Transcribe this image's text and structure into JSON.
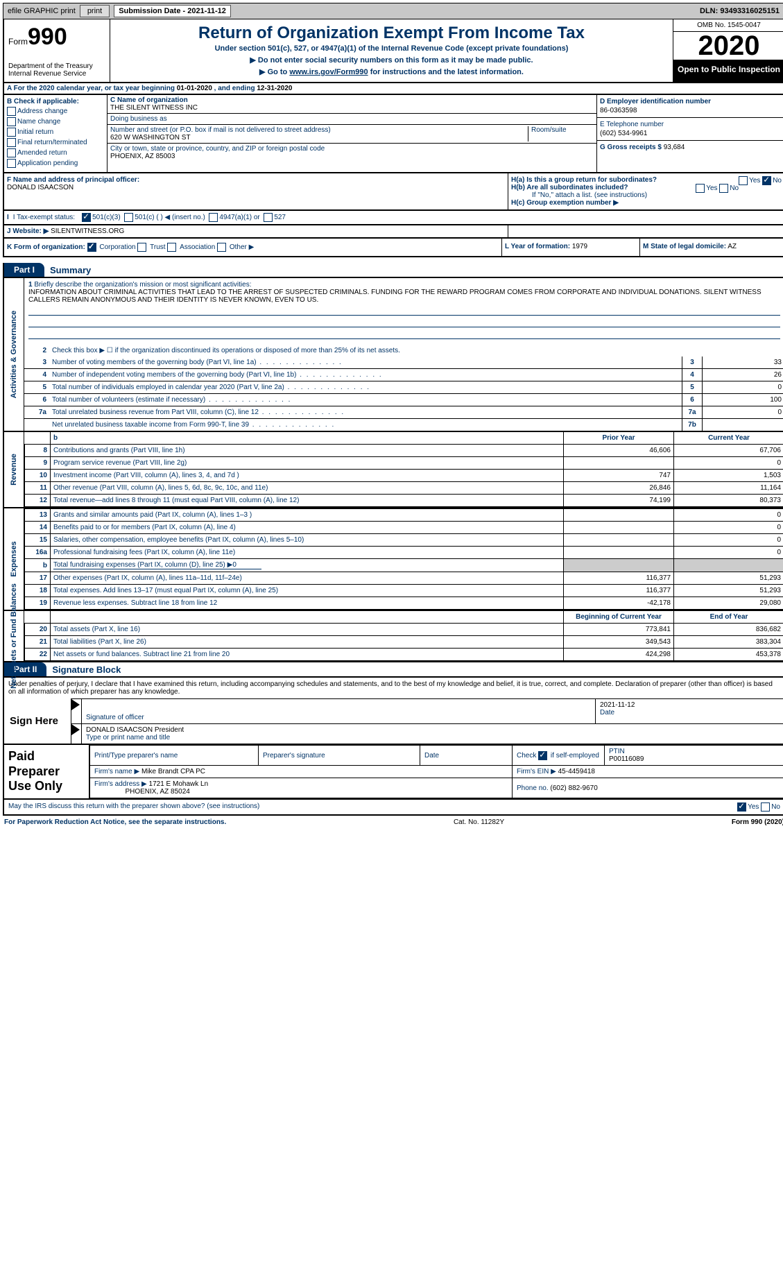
{
  "topbar": {
    "efile": "efile GRAPHIC print",
    "submission": "Submission Date - 2021-11-12",
    "dln": "DLN: 93493316025151"
  },
  "header": {
    "form_label": "Form",
    "form_no": "990",
    "title": "Return of Organization Exempt From Income Tax",
    "sub1": "Under section 501(c), 527, or 4947(a)(1) of the Internal Revenue Code (except private foundations)",
    "sub2": "Do not enter social security numbers on this form as it may be made public.",
    "sub3_a": "Go to ",
    "sub3_link": "www.irs.gov/Form990",
    "sub3_b": " for instructions and the latest information.",
    "dept": "Department of the Treasury\nInternal Revenue Service",
    "omb": "OMB No. 1545-0047",
    "year": "2020",
    "open": "Open to Public Inspection"
  },
  "sectionA": {
    "text_a": "For the 2020 calendar year, or tax year beginning ",
    "begin": "01-01-2020",
    "text_b": " , and ending ",
    "end": "12-31-2020"
  },
  "colB": {
    "label": "B Check if applicable:",
    "items": [
      "Address change",
      "Name change",
      "Initial return",
      "Final return/terminated",
      "Amended return",
      "Application pending"
    ]
  },
  "colC": {
    "name_label": "C Name of organization",
    "name": "THE SILENT WITNESS INC",
    "dba_label": "Doing business as",
    "dba": "",
    "addr_label": "Number and street (or P.O. box if mail is not delivered to street address)",
    "room_label": "Room/suite",
    "addr": "620 W WASHINGTON ST",
    "city_label": "City or town, state or province, country, and ZIP or foreign postal code",
    "city": "PHOENIX, AZ  85003"
  },
  "colDE": {
    "d_label": "D Employer identification number",
    "d_val": "86-0363598",
    "e_label": "E Telephone number",
    "e_val": "(602) 534-9961",
    "g_label": "G Gross receipts $",
    "g_val": "93,684"
  },
  "rowF": {
    "label": "F Name and address of principal officer:",
    "val": "DONALD ISAACSON"
  },
  "rowH": {
    "a": "H(a) Is this a group return for subordinates?",
    "b": "H(b) Are all subordinates included?",
    "note": "If \"No,\" attach a list. (see instructions)",
    "c": "H(c) Group exemption number ▶"
  },
  "rowI": {
    "label": "I Tax-exempt status:",
    "o1": "501(c)(3)",
    "o2": "501(c) (  ) ◀ (insert no.)",
    "o3": "4947(a)(1) or",
    "o4": "527"
  },
  "rowJ": {
    "label": "J Website: ▶",
    "val": "SILENTWITNESS.ORG"
  },
  "rowK": {
    "label": "K Form of organization:",
    "o1": "Corporation",
    "o2": "Trust",
    "o3": "Association",
    "o4": "Other ▶",
    "l_label": "L Year of formation:",
    "l_val": "1979",
    "m_label": "M State of legal domicile:",
    "m_val": "AZ"
  },
  "part1": {
    "tag": "Part I",
    "title": "Summary"
  },
  "mission": {
    "label": "Briefly describe the organization's mission or most significant activities:",
    "text": "INFORMATION ABOUT CRIMINAL ACTIVITIES THAT LEAD TO THE ARREST OF SUSPECTED CRIMINALS. FUNDING FOR THE REWARD PROGRAM COMES FROM CORPORATE AND INDIVIDUAL DONATIONS. SILENT WITNESS CALLERS REMAIN ANONYMOUS AND THEIR IDENTITY IS NEVER KNOWN, EVEN TO US."
  },
  "gov": {
    "side": "Activities & Governance",
    "l2": "Check this box ▶ ☐ if the organization discontinued its operations or disposed of more than 25% of its net assets.",
    "rows": [
      {
        "n": "3",
        "t": "Number of voting members of the governing body (Part VI, line 1a)",
        "b": "3",
        "v": "33"
      },
      {
        "n": "4",
        "t": "Number of independent voting members of the governing body (Part VI, line 1b)",
        "b": "4",
        "v": "26"
      },
      {
        "n": "5",
        "t": "Total number of individuals employed in calendar year 2020 (Part V, line 2a)",
        "b": "5",
        "v": "0"
      },
      {
        "n": "6",
        "t": "Total number of volunteers (estimate if necessary)",
        "b": "6",
        "v": "100"
      },
      {
        "n": "7a",
        "t": "Total unrelated business revenue from Part VIII, column (C), line 12",
        "b": "7a",
        "v": "0"
      },
      {
        "n": "",
        "t": "Net unrelated business taxable income from Form 990-T, line 39",
        "b": "7b",
        "v": ""
      }
    ]
  },
  "fin_hdr": {
    "prior": "Prior Year",
    "current": "Current Year"
  },
  "revenue": {
    "side": "Revenue",
    "rows": [
      {
        "n": "8",
        "t": "Contributions and grants (Part VIII, line 1h)",
        "p": "46,606",
        "c": "67,706"
      },
      {
        "n": "9",
        "t": "Program service revenue (Part VIII, line 2g)",
        "p": "",
        "c": "0"
      },
      {
        "n": "10",
        "t": "Investment income (Part VIII, column (A), lines 3, 4, and 7d )",
        "p": "747",
        "c": "1,503"
      },
      {
        "n": "11",
        "t": "Other revenue (Part VIII, column (A), lines 5, 6d, 8c, 9c, 10c, and 11e)",
        "p": "26,846",
        "c": "11,164"
      },
      {
        "n": "12",
        "t": "Total revenue—add lines 8 through 11 (must equal Part VIII, column (A), line 12)",
        "p": "74,199",
        "c": "80,373"
      }
    ]
  },
  "expenses": {
    "side": "Expenses",
    "rows": [
      {
        "n": "13",
        "t": "Grants and similar amounts paid (Part IX, column (A), lines 1–3 )",
        "p": "",
        "c": "0"
      },
      {
        "n": "14",
        "t": "Benefits paid to or for members (Part IX, column (A), line 4)",
        "p": "",
        "c": "0"
      },
      {
        "n": "15",
        "t": "Salaries, other compensation, employee benefits (Part IX, column (A), lines 5–10)",
        "p": "",
        "c": "0"
      },
      {
        "n": "16a",
        "t": "Professional fundraising fees (Part IX, column (A), line 11e)",
        "p": "",
        "c": "0"
      },
      {
        "n": "b",
        "t": "Total fundraising expenses (Part IX, column (D), line 25) ▶0",
        "p": "shaded",
        "c": "shaded"
      },
      {
        "n": "17",
        "t": "Other expenses (Part IX, column (A), lines 11a–11d, 11f–24e)",
        "p": "116,377",
        "c": "51,293"
      },
      {
        "n": "18",
        "t": "Total expenses. Add lines 13–17 (must equal Part IX, column (A), line 25)",
        "p": "116,377",
        "c": "51,293"
      },
      {
        "n": "19",
        "t": "Revenue less expenses. Subtract line 18 from line 12",
        "p": "-42,178",
        "c": "29,080"
      }
    ]
  },
  "net_hdr": {
    "begin": "Beginning of Current Year",
    "end": "End of Year"
  },
  "netassets": {
    "side": "Net Assets or Fund Balances",
    "rows": [
      {
        "n": "20",
        "t": "Total assets (Part X, line 16)",
        "p": "773,841",
        "c": "836,682"
      },
      {
        "n": "21",
        "t": "Total liabilities (Part X, line 26)",
        "p": "349,543",
        "c": "383,304"
      },
      {
        "n": "22",
        "t": "Net assets or fund balances. Subtract line 21 from line 20",
        "p": "424,298",
        "c": "453,378"
      }
    ]
  },
  "part2": {
    "tag": "Part II",
    "title": "Signature Block"
  },
  "sig": {
    "penalty": "Under penalties of perjury, I declare that I have examined this return, including accompanying schedules and statements, and to the best of my knowledge and belief, it is true, correct, and complete. Declaration of preparer (other than officer) is based on all information of which preparer has any knowledge.",
    "sign_here": "Sign Here",
    "sig_officer": "Signature of officer",
    "date": "2021-11-12",
    "date_lbl": "Date",
    "name": "DONALD ISAACSON  President",
    "name_lbl": "Type or print name and title"
  },
  "paid": {
    "label": "Paid Preparer Use Only",
    "h1": "Print/Type preparer's name",
    "h2": "Preparer's signature",
    "h3": "Date",
    "h4a": "Check",
    "h4b": "if self-employed",
    "h5": "PTIN",
    "ptin": "P00116089",
    "firm_name_lbl": "Firm's name ▶",
    "firm_name": "Mike Brandt CPA PC",
    "firm_ein_lbl": "Firm's EIN ▶",
    "firm_ein": "45-4459418",
    "firm_addr_lbl": "Firm's address ▶",
    "firm_addr": "1721 E Mohawk Ln",
    "firm_city": "PHOENIX, AZ  85024",
    "phone_lbl": "Phone no.",
    "phone": "(602) 882-9670"
  },
  "discuss": {
    "text": "May the IRS discuss this return with the preparer shown above? (see instructions)",
    "yes": "Yes",
    "no": "No"
  },
  "footer": {
    "left": "For Paperwork Reduction Act Notice, see the separate instructions.",
    "mid": "Cat. No. 11282Y",
    "right": "Form 990 (2020)"
  }
}
